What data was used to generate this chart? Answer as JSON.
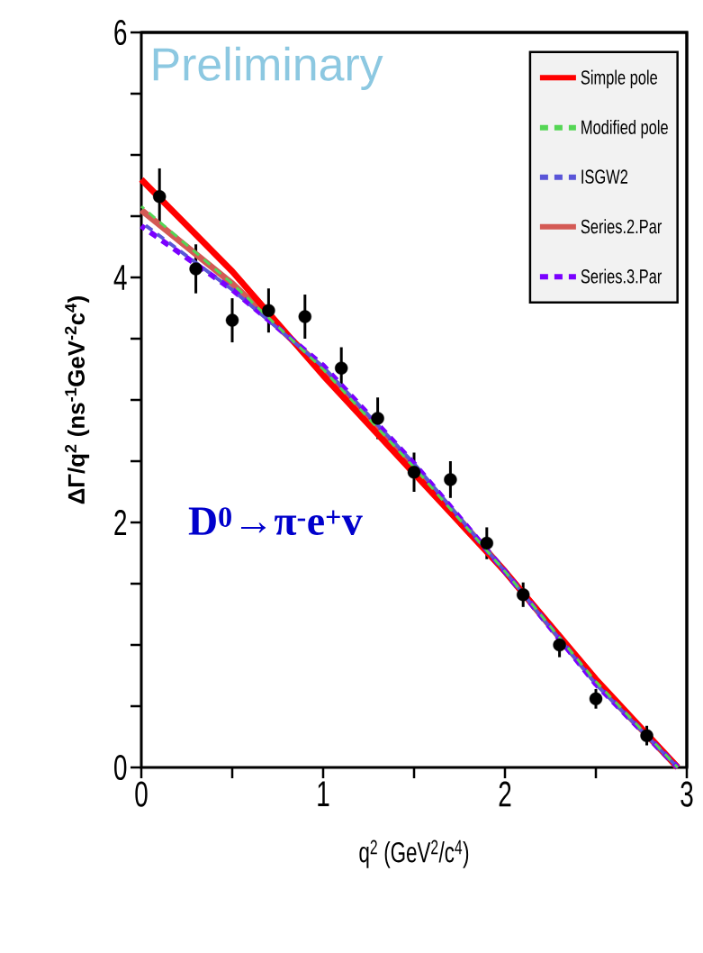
{
  "chart_data": {
    "type": "line",
    "xlabel": "q$^{2}$ (GeV$^{2}$/c$^{4}$)",
    "ylabel": "ΔΓ/q$^{2}$ (ns$^{-1}$GeV$^{-2}$c$^{4}$)",
    "annotations": [
      "D$^{0}$→π$^{-}$e$^{+}$v",
      "Preliminary"
    ],
    "xlim": [
      0,
      3
    ],
    "ylim": [
      0,
      6
    ],
    "xticks": [
      0,
      {
        "value": 0.5,
        "label": null
      },
      1,
      {
        "value": 1.5,
        "label": null
      },
      2,
      {
        "value": 2.5,
        "label": null
      },
      3
    ],
    "yticks": [
      0,
      {
        "value": 0.5,
        "label": null
      },
      {
        "value": 1,
        "label": null
      },
      {
        "value": 1.5,
        "label": null
      },
      2,
      {
        "value": 2.5,
        "label": null
      },
      {
        "value": 3,
        "label": null
      },
      {
        "value": 3.5,
        "label": null
      },
      4,
      {
        "value": 4.5,
        "label": null
      },
      {
        "value": 5,
        "label": null
      },
      {
        "value": 5.5,
        "label": null
      },
      6
    ],
    "legend": "top right",
    "series": [
      {
        "name": "Simple pole",
        "color": "#ff0000",
        "line_style": "solid",
        "marker": "none",
        "x": [
          0,
          0.5,
          1,
          1.5,
          2,
          2.5,
          2.95
        ],
        "values": [
          4.8,
          4.05,
          3.2,
          2.4,
          1.6,
          0.72,
          0
        ]
      },
      {
        "name": "Modified pole",
        "color": "#55d655",
        "line_style": "dashed",
        "marker": "none",
        "x": [
          0,
          0.5,
          1,
          1.5,
          2,
          2.5,
          2.95
        ],
        "values": [
          4.58,
          3.95,
          3.25,
          2.45,
          1.6,
          0.7,
          0
        ]
      },
      {
        "name": "ISGW2",
        "color": "#5a55d8",
        "line_style": "dashed",
        "marker": "none",
        "x": [
          0,
          0.5,
          1,
          1.5,
          2,
          2.5,
          2.95
        ],
        "values": [
          4.45,
          3.9,
          3.27,
          2.48,
          1.6,
          0.68,
          0
        ]
      },
      {
        "name": "Series.2.Par",
        "color": "#d45a55",
        "line_style": "solid",
        "marker": "none",
        "x": [
          0,
          0.5,
          1,
          1.5,
          2,
          2.5,
          2.95
        ],
        "values": [
          4.55,
          3.95,
          3.25,
          2.45,
          1.6,
          0.7,
          0
        ]
      },
      {
        "name": "Series.3.Par",
        "color": "#7a00ff",
        "line_style": "dashed",
        "marker": "none",
        "x": [
          0,
          0.5,
          1,
          1.5,
          2,
          2.5,
          2.95
        ],
        "values": [
          4.42,
          3.9,
          3.28,
          2.48,
          1.6,
          0.68,
          0
        ]
      },
      {
        "type": "scatter",
        "color": "#000000",
        "marker": "circle",
        "x": [
          0.1,
          0.3,
          0.5,
          0.7,
          0.9,
          1.1,
          1.3,
          1.5,
          1.7,
          1.9,
          2.1,
          2.3,
          2.5,
          2.78
        ],
        "values": [
          4.66,
          4.07,
          3.65,
          3.73,
          3.68,
          3.26,
          2.85,
          2.41,
          2.35,
          1.83,
          1.41,
          1.0,
          0.56,
          0.26
        ],
        "errors": [
          0.23,
          0.2,
          0.18,
          0.18,
          0.18,
          0.17,
          0.17,
          0.16,
          0.15,
          0.13,
          0.1,
          0.1,
          0.08,
          0.08
        ]
      }
    ]
  }
}
